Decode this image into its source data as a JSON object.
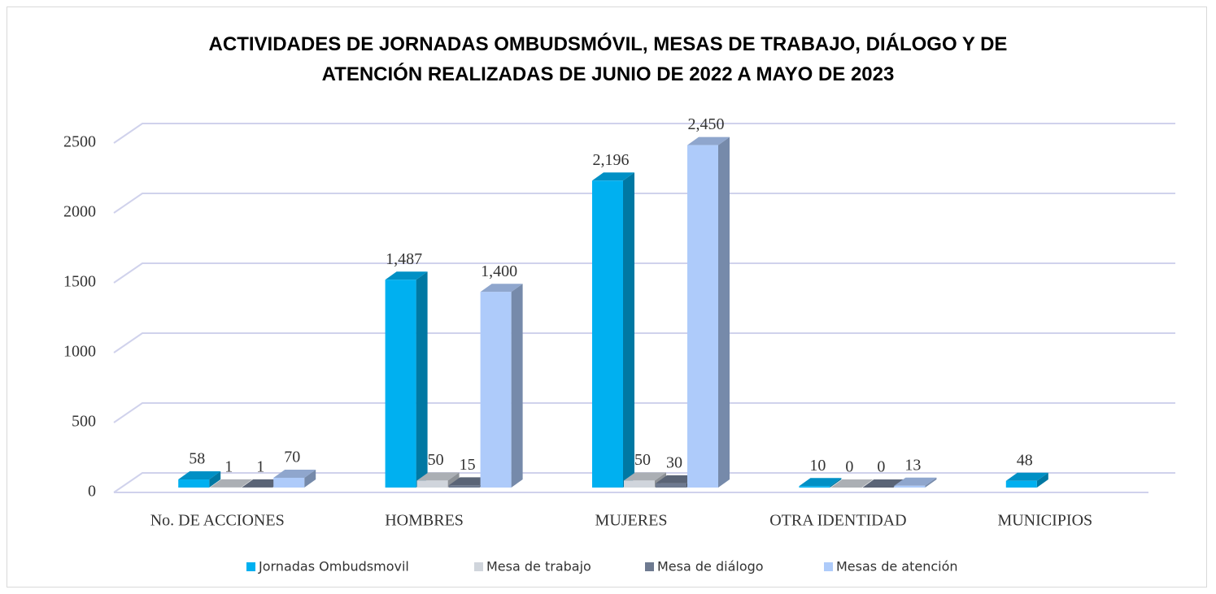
{
  "chart_data": {
    "type": "bar3d",
    "title": "ACTIVIDADES DE JORNADAS OMBUDSMÓVIL, MESAS DE TRABAJO, DIÁLOGO Y DE ATENCIÓN REALIZADAS DE JUNIO DE 2022 A MAYO DE 2023",
    "categories": [
      "No. DE ACCIONES",
      "HOMBRES",
      "MUJERES",
      "OTRA IDENTIDAD",
      "MUNICIPIOS"
    ],
    "series": [
      {
        "name": "Jornadas Ombudsmovil",
        "color": "#00b0f0",
        "values": [
          58,
          1487,
          2196,
          10,
          48
        ],
        "value_labels": [
          "58",
          "1,487",
          "2,196",
          "10",
          "48"
        ]
      },
      {
        "name": "Mesa de trabajo",
        "color": "#d0d5dc",
        "values": [
          1,
          50,
          50,
          0,
          null
        ],
        "value_labels": [
          "1",
          "50",
          "50",
          "0",
          null
        ]
      },
      {
        "name": "Mesa de diálogo",
        "color": "#6e7a90",
        "values": [
          1,
          15,
          30,
          0,
          null
        ],
        "value_labels": [
          "1",
          "15",
          "30",
          "0",
          null
        ]
      },
      {
        "name": "Mesas de atención",
        "color": "#aecbfa",
        "values": [
          70,
          1400,
          2450,
          13,
          null
        ],
        "value_labels": [
          "70",
          "1,400",
          "2,450",
          "13",
          null
        ]
      }
    ],
    "ylim": [
      0,
      2500
    ],
    "yticks": [
      0,
      500,
      1000,
      1500,
      2000,
      2500
    ],
    "grid": true,
    "legend": "bottom"
  }
}
